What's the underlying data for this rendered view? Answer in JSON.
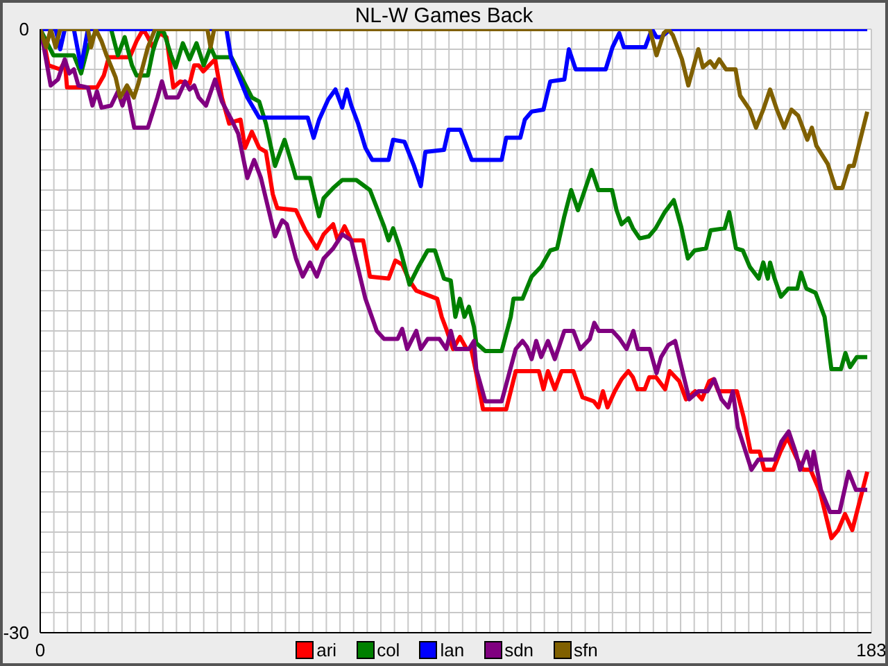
{
  "chart_data": {
    "type": "line",
    "title": "NL-W Games Back",
    "xlim": [
      0,
      183
    ],
    "ylim": [
      -30,
      0
    ],
    "xticks": [
      0,
      {
        "value": 3,
        "label": null
      },
      {
        "value": 6,
        "label": null
      },
      {
        "value": 9,
        "label": null
      },
      {
        "value": 12,
        "label": null
      },
      {
        "value": 15,
        "label": null
      },
      {
        "value": 18,
        "label": null
      },
      {
        "value": 21,
        "label": null
      },
      {
        "value": 24,
        "label": null
      },
      {
        "value": 27,
        "label": null
      },
      {
        "value": 30,
        "label": null
      },
      {
        "value": 33,
        "label": null
      },
      {
        "value": 36,
        "label": null
      },
      {
        "value": 39,
        "label": null
      },
      {
        "value": 42,
        "label": null
      },
      {
        "value": 45,
        "label": null
      },
      {
        "value": 48,
        "label": null
      },
      {
        "value": 51,
        "label": null
      },
      {
        "value": 54,
        "label": null
      },
      {
        "value": 57,
        "label": null
      },
      {
        "value": 60,
        "label": null
      },
      {
        "value": 63,
        "label": null
      },
      {
        "value": 66,
        "label": null
      },
      {
        "value": 69,
        "label": null
      },
      {
        "value": 72,
        "label": null
      },
      {
        "value": 75,
        "label": null
      },
      {
        "value": 78,
        "label": null
      },
      {
        "value": 81,
        "label": null
      },
      {
        "value": 84,
        "label": null
      },
      {
        "value": 87,
        "label": null
      },
      {
        "value": 90,
        "label": null
      },
      {
        "value": 93,
        "label": null
      },
      {
        "value": 96,
        "label": null
      },
      {
        "value": 99,
        "label": null
      },
      {
        "value": 102,
        "label": null
      },
      {
        "value": 105,
        "label": null
      },
      {
        "value": 108,
        "label": null
      },
      {
        "value": 111,
        "label": null
      },
      {
        "value": 114,
        "label": null
      },
      {
        "value": 117,
        "label": null
      },
      {
        "value": 120,
        "label": null
      },
      {
        "value": 123,
        "label": null
      },
      {
        "value": 126,
        "label": null
      },
      {
        "value": 129,
        "label": null
      },
      {
        "value": 132,
        "label": null
      },
      {
        "value": 135,
        "label": null
      },
      {
        "value": 138,
        "label": null
      },
      {
        "value": 141,
        "label": null
      },
      {
        "value": 144,
        "label": null
      },
      {
        "value": 147,
        "label": null
      },
      {
        "value": 150,
        "label": null
      },
      {
        "value": 153,
        "label": null
      },
      {
        "value": 156,
        "label": null
      },
      {
        "value": 159,
        "label": null
      },
      {
        "value": 162,
        "label": null
      },
      {
        "value": 165,
        "label": null
      },
      {
        "value": 168,
        "label": null
      },
      {
        "value": 171,
        "label": null
      },
      {
        "value": 174,
        "label": null
      },
      {
        "value": 177,
        "label": null
      },
      {
        "value": 180,
        "label": null
      },
      183
    ],
    "yticks": [
      0,
      {
        "value": -1,
        "label": null
      },
      {
        "value": -2,
        "label": null
      },
      {
        "value": -3,
        "label": null
      },
      {
        "value": -4,
        "label": null
      },
      {
        "value": -5,
        "label": null
      },
      {
        "value": -6,
        "label": null
      },
      {
        "value": -7,
        "label": null
      },
      {
        "value": -8,
        "label": null
      },
      {
        "value": -9,
        "label": null
      },
      {
        "value": -10,
        "label": null
      },
      {
        "value": -11,
        "label": null
      },
      {
        "value": -12,
        "label": null
      },
      {
        "value": -13,
        "label": null
      },
      {
        "value": -14,
        "label": null
      },
      {
        "value": -15,
        "label": null
      },
      {
        "value": -16,
        "label": null
      },
      {
        "value": -17,
        "label": null
      },
      {
        "value": -18,
        "label": null
      },
      {
        "value": -19,
        "label": null
      },
      {
        "value": -20,
        "label": null
      },
      {
        "value": -21,
        "label": null
      },
      {
        "value": -22,
        "label": null
      },
      {
        "value": -23,
        "label": null
      },
      {
        "value": -24,
        "label": null
      },
      {
        "value": -25,
        "label": null
      },
      {
        "value": -26,
        "label": null
      },
      {
        "value": -27,
        "label": null
      },
      {
        "value": -28,
        "label": null
      },
      {
        "value": -29,
        "label": null
      },
      -30
    ],
    "grid": true,
    "legend": "bottom",
    "marker": "none",
    "line_style": "solid",
    "series": [
      {
        "name": "ari",
        "color": "#ff0000",
        "x": [
          0,
          0.8,
          1.8,
          4.4,
          5.4,
          5.9,
          12.5,
          14,
          15.1,
          19.7,
          21.2,
          22.7,
          23.7,
          24.8,
          26.3,
          27.8,
          29.3,
          30.8,
          32.9,
          33.9,
          34.9,
          35.9,
          38.5,
          40,
          41.6,
          42.6,
          44.1,
          45.1,
          46.6,
          48.2,
          49.7,
          51.2,
          52.2,
          56.3,
          58.4,
          60.9,
          62.4,
          64.5,
          65.5,
          67,
          68.5,
          71.1,
          72.6,
          76.7,
          78.2,
          79.7,
          81.3,
          82.8,
          87.4,
          88.4,
          89.4,
          90.9,
          92.4,
          93.9,
          94.9,
          96,
          97.5,
          102.6,
          104.7,
          109.8,
          110.8,
          111.8,
          113.3,
          114.8,
          117.4,
          119.4,
          121.9,
          122.9,
          123.9,
          124.9,
          126.5,
          128,
          129.5,
          130.5,
          131.5,
          133.1,
          134.1,
          135.6,
          137.6,
          138.6,
          140.7,
          142.2,
          144.2,
          145.7,
          147.3,
          148.3,
          149.3,
          153.4,
          154.9,
          156.4,
          158.4,
          159.4,
          161.4,
          163,
          164.5,
          166.5,
          168,
          169.6,
          171.7,
          174.2,
          175.7,
          177.2,
          178.8,
          182.1
        ],
        "values": [
          0,
          -0.6,
          -1.8,
          -2,
          -1.6,
          -2.9,
          -2.9,
          -2.3,
          -1.4,
          -1.4,
          -0.6,
          0,
          -0.4,
          -0.9,
          -0.2,
          -0.4,
          -2.9,
          -2.6,
          -2.7,
          -1.8,
          -1.8,
          -2.1,
          -1.5,
          -3.4,
          -4.7,
          -4.6,
          -4.5,
          -5.9,
          -5.1,
          -5.9,
          -6.1,
          -8.2,
          -8.9,
          -9,
          -10,
          -10.9,
          -10.2,
          -9.7,
          -10.5,
          -9.8,
          -10.5,
          -10.5,
          -12.3,
          -12.4,
          -11.5,
          -11.7,
          -12.5,
          -13,
          -13.4,
          -14.3,
          -14.9,
          -15.9,
          -15.3,
          -15.9,
          -15.9,
          -17.1,
          -18.9,
          -18.9,
          -17,
          -17,
          -17.9,
          -17,
          -17.9,
          -17,
          -17,
          -18.3,
          -18.5,
          -18.8,
          -18,
          -18.8,
          -18,
          -17.4,
          -17,
          -17.3,
          -17.9,
          -17.9,
          -17.3,
          -17.3,
          -17.9,
          -17,
          -17.5,
          -18.4,
          -18,
          -18.4,
          -17.5,
          -17.4,
          -18,
          -18,
          -19.3,
          -21,
          -21,
          -21.9,
          -21.9,
          -21,
          -20.3,
          -21.3,
          -21.9,
          -21.9,
          -23,
          -25.3,
          -24.9,
          -24.1,
          -24.9,
          -22
        ]
      },
      {
        "name": "col",
        "color": "#008000",
        "x": [
          0,
          2.9,
          7.4,
          9,
          10.5,
          12.5,
          15.6,
          17.1,
          18.6,
          20.2,
          21.2,
          23.7,
          24.8,
          26.3,
          27.3,
          28.8,
          29.8,
          31.4,
          32.9,
          34.4,
          36,
          37.5,
          38.5,
          42.1,
          46.6,
          48.2,
          49.7,
          51.7,
          53.8,
          55.8,
          56.3,
          59.4,
          61.4,
          62.4,
          64.5,
          66.5,
          69.6,
          72.6,
          75.7,
          76.7,
          77.7,
          79.2,
          81.3,
          83.3,
          85.3,
          86.9,
          88.9,
          90.4,
          91.4,
          92.4,
          93.4,
          94.4,
          95.5,
          96,
          98,
          101.6,
          103.6,
          104.2,
          106.2,
          108.2,
          110.3,
          112.3,
          113.8,
          115.4,
          116.9,
          118.4,
          119.9,
          121.4,
          122.9,
          125.9,
          126.9,
          128,
          129.5,
          130.5,
          132,
          134,
          135.5,
          137.5,
          139.5,
          141.1,
          142.6,
          144.1,
          146.6,
          147.6,
          150.7,
          151.7,
          153.2,
          154.7,
          156.2,
          158.2,
          159.2,
          160.2,
          160.7,
          161.7,
          163.1,
          164.7,
          166.7,
          167.5,
          168.7,
          170.7,
          172.7,
          174.2,
          176.3,
          177.3,
          178.3,
          179.8,
          182.1
        ],
        "values": [
          0,
          -1.3,
          -1.3,
          -2.2,
          -0.9,
          0,
          0,
          -1.3,
          -0.4,
          -1.8,
          -2.3,
          -2.3,
          -1.1,
          0,
          -0.2,
          -1.3,
          -1.9,
          -0.7,
          -1.5,
          -0.7,
          -1.8,
          -0.9,
          -1.4,
          -1.4,
          -3.4,
          -3.6,
          -4.7,
          -6.8,
          -5.5,
          -7,
          -7.4,
          -7.4,
          -9.3,
          -8.4,
          -7.9,
          -7.5,
          -7.5,
          -8,
          -9.8,
          -10.5,
          -9.9,
          -10.9,
          -12.7,
          -11.8,
          -11,
          -11,
          -12.4,
          -12.5,
          -14.3,
          -13.4,
          -14.3,
          -13.8,
          -14.8,
          -15.6,
          -16,
          -16,
          -14.3,
          -13.4,
          -13.4,
          -12.3,
          -11.8,
          -11,
          -10.9,
          -9.3,
          -8,
          -9,
          -8,
          -7,
          -8,
          -8,
          -9,
          -9.7,
          -9.4,
          -9.9,
          -10.4,
          -10.3,
          -9.9,
          -9.1,
          -8.5,
          -9.8,
          -11.4,
          -11,
          -10.9,
          -10,
          -9.9,
          -9.1,
          -10.9,
          -11,
          -11.8,
          -12.4,
          -11.6,
          -12.4,
          -11.6,
          -12.4,
          -13.3,
          -12.9,
          -12.9,
          -12.1,
          -12.9,
          -13.1,
          -14.3,
          -16.9,
          -16.9,
          -16.1,
          -16.8,
          -16.3,
          -16.3
        ]
      },
      {
        "name": "lan",
        "color": "#0000ff",
        "x": [
          0,
          3.4,
          4.4,
          5.4,
          7.4,
          9,
          10.5,
          41,
          42,
          45.6,
          48.2,
          58.9,
          60.2,
          61.4,
          63.4,
          65,
          66.5,
          67.5,
          68.5,
          70,
          71.6,
          73.1,
          76.7,
          77.7,
          80.2,
          82.3,
          83.8,
          84.8,
          88.9,
          89.9,
          92.5,
          95,
          101.6,
          102.6,
          105.7,
          106.7,
          108.2,
          110.8,
          112.3,
          115.4,
          116.4,
          117.9,
          124.5,
          126,
          127.5,
          128.5,
          133.2,
          134.7,
          135.7,
          136.7,
          138.8,
          182.1
        ],
        "values": [
          0,
          0,
          -1,
          0,
          0,
          -1.9,
          0,
          0,
          -1.4,
          -3.4,
          -4.4,
          -4.4,
          -5.4,
          -4.5,
          -3.5,
          -3,
          -3.9,
          -3,
          -3.8,
          -4.7,
          -5.9,
          -6.5,
          -6.5,
          -5.5,
          -5.6,
          -6.8,
          -7.8,
          -6.1,
          -6,
          -5,
          -5,
          -6.5,
          -6.5,
          -5.4,
          -5.4,
          -4.5,
          -4.1,
          -4,
          -2.6,
          -2.5,
          -1,
          -2,
          -2,
          -0.9,
          -0.2,
          -0.9,
          -0.9,
          0,
          -0.4,
          -0.4,
          0,
          0
        ]
      },
      {
        "name": "sdn",
        "color": "#800080",
        "x": [
          0,
          0.8,
          2.3,
          3.9,
          5.4,
          6.4,
          7.4,
          8.4,
          10.5,
          11.5,
          12.5,
          13.5,
          15.6,
          17.1,
          18.1,
          19.1,
          20.7,
          23.7,
          25.8,
          26.8,
          27.8,
          30.3,
          31.9,
          32.9,
          33.9,
          34.9,
          36.5,
          38.5,
          40,
          42.1,
          43.6,
          45.6,
          47.1,
          48.6,
          50.2,
          51.7,
          53.3,
          54.3,
          56.3,
          57.8,
          59.4,
          60.9,
          62.4,
          64.5,
          66.5,
          68.5,
          71.6,
          74.1,
          75.7,
          78.7,
          79.7,
          80.8,
          82.8,
          83.8,
          85.3,
          87.9,
          89.4,
          90.4,
          91.4,
          94.4,
          95.5,
          96,
          98,
          101.6,
          104.7,
          106.2,
          107.2,
          108.2,
          109.2,
          110.3,
          111.8,
          113.3,
          115.4,
          117.4,
          118.9,
          121,
          122,
          123,
          126,
          127.6,
          129.1,
          130.6,
          131.6,
          134.2,
          135.7,
          136.7,
          138.3,
          139.8,
          141.3,
          142.9,
          144.9,
          146.9,
          148.4,
          150,
          151.5,
          152.5,
          153.6,
          156.6,
          158.1,
          161.7,
          163.2,
          164.8,
          166.3,
          167.3,
          168.8,
          169.8,
          170.3,
          171.9,
          173.9,
          176,
          178,
          179.6,
          182.1
        ],
        "values": [
          0,
          -0.9,
          -2.8,
          -2.5,
          -1.5,
          -2.2,
          -2,
          -2.8,
          -2.9,
          -3.8,
          -3.1,
          -3.9,
          -3.8,
          -3.1,
          -3.8,
          -3.1,
          -4.9,
          -4.9,
          -3.4,
          -2.6,
          -3.4,
          -3.4,
          -2.6,
          -3,
          -2.8,
          -3.4,
          -3.8,
          -2.5,
          -3.6,
          -4.5,
          -5.2,
          -7.4,
          -6.5,
          -7.4,
          -8.9,
          -10.3,
          -9.5,
          -9.7,
          -11.4,
          -12.3,
          -11.6,
          -12.3,
          -11.4,
          -10.9,
          -10.2,
          -10.5,
          -13.4,
          -15,
          -15.4,
          -15.4,
          -14.9,
          -15.9,
          -15,
          -15.9,
          -15.4,
          -15.4,
          -15.9,
          -15,
          -15.9,
          -15.9,
          -15.5,
          -16.9,
          -18.5,
          -18.5,
          -15.9,
          -15.5,
          -15.8,
          -16.4,
          -15.5,
          -16.3,
          -15.5,
          -16.4,
          -15,
          -15,
          -15.9,
          -15.4,
          -14.6,
          -15,
          -15,
          -15.4,
          -15.9,
          -15,
          -15.9,
          -15.9,
          -17.1,
          -16.3,
          -15.7,
          -15.5,
          -16.9,
          -18.4,
          -18,
          -18,
          -17.4,
          -18.4,
          -18.8,
          -18,
          -19.8,
          -21.9,
          -21.4,
          -21.4,
          -20.5,
          -20,
          -21,
          -21.9,
          -21,
          -21.9,
          -21,
          -22.9,
          -24,
          -24,
          -22,
          -22.9,
          -22.9
        ]
      },
      {
        "name": "sfn",
        "color": "#806000",
        "x": [
          0,
          1.3,
          2.3,
          3.4,
          4.4,
          10.5,
          11.2,
          12.2,
          13.5,
          14.6,
          16.6,
          17.6,
          19.1,
          20.6,
          21.6,
          23.7,
          25.3,
          36.8,
          37.5,
          38.3,
          134.2,
          135.7,
          137.3,
          138.3,
          139.3,
          141.3,
          142.7,
          144.9,
          145.9,
          147.5,
          148.5,
          149.5,
          151,
          153.1,
          154.1,
          156.2,
          157.6,
          159.2,
          160.7,
          162.2,
          163.8,
          165.4,
          166.9,
          168.9,
          169.9,
          170.9,
          173.4,
          175.1,
          176.6,
          178.1,
          179.1,
          182.1
        ],
        "values": [
          0,
          -0.9,
          0,
          -0.9,
          0,
          0,
          -0.9,
          0,
          -0.6,
          -1.3,
          -2.4,
          -3.4,
          -2.8,
          -3.4,
          -2.7,
          -0.9,
          0,
          0,
          -0.9,
          0,
          0,
          -1.3,
          -0.2,
          0,
          -0.3,
          -1.5,
          -2.8,
          -1,
          -1.9,
          -1.6,
          -1.9,
          -1.5,
          -2,
          -2,
          -3.3,
          -4,
          -4.9,
          -4,
          -3,
          -4,
          -4.9,
          -4,
          -4.3,
          -5.5,
          -4.9,
          -5.8,
          -6.7,
          -7.9,
          -7.9,
          -6.8,
          -6.8,
          -4.1
        ]
      }
    ]
  }
}
